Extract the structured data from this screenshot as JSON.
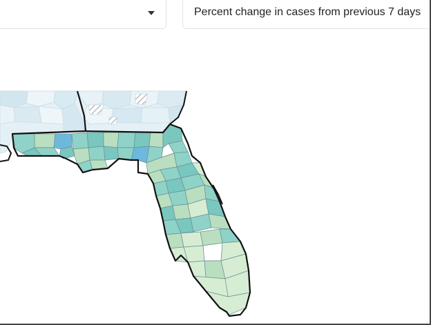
{
  "filters": {
    "region_selected": "",
    "metric_selected": "Percent change in cases from previous 7 days"
  },
  "map": {
    "state_shown": "Florida",
    "colors": {
      "neighbor_fill_light": "#e4f0f6",
      "neighbor_fill_mid": "#d2e6f0",
      "county_teal": "#8fd2c8",
      "county_teal_dark": "#79c7bf",
      "county_green": "#b9dfc0",
      "county_light_green": "#d6edd3",
      "county_blue": "#6cb9dd",
      "county_white": "#ffffff",
      "state_border": "#111111",
      "county_border": "#6a8f93"
    }
  }
}
